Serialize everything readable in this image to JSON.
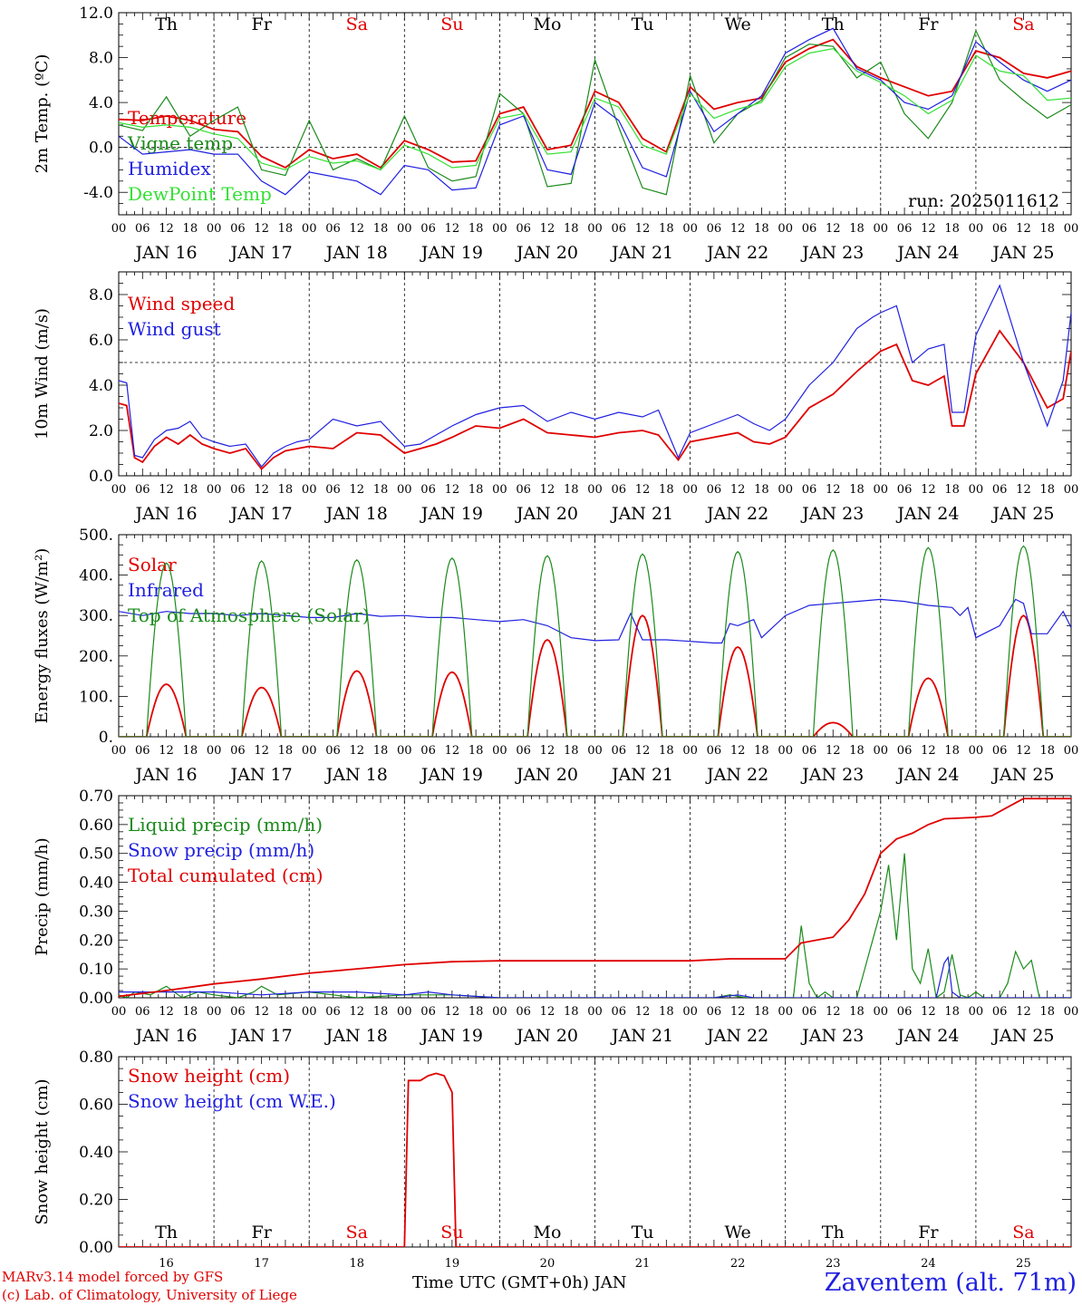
{
  "run_label": "run: 2025011612",
  "footer": {
    "model": "MARv3.14 model forced by GFS",
    "lab": "(c) Lab. of Climatology, University of Liege",
    "axis_title": "Time UTC (GMT+0h) JAN",
    "station": "Zaventem (alt. 71m)"
  },
  "colors": {
    "red": "#e00000",
    "blue": "#2020e0",
    "green": "#1a8a1a",
    "light_green": "#33e033",
    "weekend": "#e00000",
    "text": "#000000"
  },
  "days": [
    {
      "weekday": "Th",
      "date": "JAN 16",
      "day": "16",
      "weekend": false
    },
    {
      "weekday": "Fr",
      "date": "JAN 17",
      "day": "17",
      "weekend": false
    },
    {
      "weekday": "Sa",
      "date": "JAN 18",
      "day": "18",
      "weekend": true
    },
    {
      "weekday": "Su",
      "date": "JAN 19",
      "day": "19",
      "weekend": true
    },
    {
      "weekday": "Mo",
      "date": "JAN 20",
      "day": "20",
      "weekend": false
    },
    {
      "weekday": "Tu",
      "date": "JAN 21",
      "day": "21",
      "weekend": false
    },
    {
      "weekday": "We",
      "date": "JAN 22",
      "day": "22",
      "weekend": false
    },
    {
      "weekday": "Th",
      "date": "JAN 23",
      "day": "23",
      "weekend": false
    },
    {
      "weekday": "Fr",
      "date": "JAN 24",
      "day": "24",
      "weekend": false
    },
    {
      "weekday": "Sa",
      "date": "JAN 25",
      "day": "25",
      "weekend": true
    }
  ],
  "hour_ticks": [
    "00",
    "06",
    "12",
    "18"
  ],
  "chart_data": [
    {
      "type": "line",
      "ylabel": "2m Temp. (ºC)",
      "ylim": [
        -6,
        12
      ],
      "yticks": [
        "-4.0",
        "0.0",
        "4.0",
        "8.0",
        "12.0"
      ],
      "ytick_values": [
        -4,
        0,
        4,
        8,
        12
      ],
      "ref_line": 0,
      "x_hours": [
        0,
        6,
        12,
        18,
        24,
        30,
        36,
        42,
        48,
        54,
        60,
        66,
        72,
        78,
        84,
        90,
        96,
        102,
        108,
        114,
        120,
        126,
        132,
        138,
        144,
        150,
        156,
        162,
        168,
        174,
        180,
        186,
        192,
        198,
        204,
        210,
        216,
        222,
        228,
        234,
        240
      ],
      "series": [
        {
          "name": "Temperature",
          "color": "red",
          "values": [
            2.5,
            2.4,
            2.8,
            2.4,
            1.6,
            1.4,
            -0.8,
            -1.8,
            -0.2,
            -1.0,
            -0.6,
            -1.8,
            0.6,
            -0.2,
            -1.3,
            -1.2,
            3.0,
            3.6,
            -0.2,
            0.2,
            5.0,
            4.0,
            0.8,
            -0.4,
            5.4,
            3.4,
            4.0,
            4.4,
            7.6,
            8.8,
            9.6,
            7.2,
            6.2,
            5.4,
            4.6,
            5.0,
            8.6,
            8.0,
            6.6,
            6.2,
            6.8
          ]
        },
        {
          "name": "Vigne temp",
          "color": "green",
          "values": [
            2.0,
            1.5,
            4.5,
            1.0,
            2.4,
            3.6,
            -2.0,
            -2.5,
            2.4,
            -2.0,
            -1.0,
            -2.0,
            2.8,
            -1.8,
            -3.0,
            -2.6,
            4.8,
            3.0,
            -3.5,
            -3.2,
            7.8,
            1.8,
            -3.6,
            -4.2,
            6.4,
            0.4,
            3.0,
            4.2,
            8.0,
            9.2,
            9.0,
            6.2,
            7.6,
            3.0,
            0.8,
            4.0,
            10.4,
            6.0,
            4.2,
            2.6,
            3.8
          ]
        },
        {
          "name": "Humidex",
          "color": "blue",
          "values": [
            1.0,
            -0.6,
            -0.4,
            -0.2,
            -0.6,
            -0.6,
            -3.0,
            -4.2,
            -2.2,
            -2.6,
            -3.0,
            -4.2,
            -1.6,
            -2.0,
            -3.8,
            -3.6,
            2.0,
            2.8,
            -2.0,
            -2.4,
            4.0,
            2.4,
            -1.8,
            -2.6,
            5.0,
            1.4,
            3.0,
            4.6,
            8.4,
            9.6,
            10.6,
            7.0,
            6.0,
            4.0,
            3.4,
            4.6,
            9.4,
            7.6,
            6.0,
            5.0,
            6.0
          ]
        },
        {
          "name": "DewPoint Temp",
          "color": "light_green",
          "values": [
            2.2,
            1.8,
            2.0,
            1.8,
            1.2,
            0.8,
            -1.4,
            -2.0,
            -0.8,
            -1.4,
            -1.2,
            -2.0,
            0.2,
            -0.6,
            -1.8,
            -1.6,
            2.6,
            3.0,
            -0.6,
            -0.4,
            4.4,
            3.6,
            0.2,
            -0.6,
            4.8,
            2.6,
            3.4,
            4.0,
            7.2,
            8.4,
            8.8,
            6.8,
            5.8,
            4.6,
            3.0,
            4.2,
            8.2,
            6.8,
            6.4,
            4.2,
            4.4
          ]
        }
      ]
    },
    {
      "type": "line",
      "ylabel": "10m Wind (m/s)",
      "ylim": [
        0,
        9
      ],
      "yticks": [
        "0.0",
        "2.0",
        "4.0",
        "6.0",
        "8.0"
      ],
      "ytick_values": [
        0,
        2,
        4,
        6,
        8
      ],
      "ref_line": 5,
      "x_hours": [
        0,
        2,
        4,
        6,
        9,
        12,
        15,
        18,
        21,
        24,
        28,
        32,
        36,
        39,
        42,
        45,
        48,
        54,
        60,
        66,
        72,
        76,
        80,
        84,
        90,
        96,
        102,
        108,
        114,
        120,
        126,
        132,
        136,
        141,
        144,
        150,
        156,
        160,
        164,
        168,
        174,
        180,
        186,
        190,
        192,
        196,
        200,
        204,
        208,
        210,
        213,
        216,
        222,
        228,
        234,
        238,
        240
      ],
      "series": [
        {
          "name": "Wind speed",
          "color": "red",
          "values": [
            3.2,
            3.1,
            0.8,
            0.6,
            1.3,
            1.7,
            1.4,
            1.8,
            1.4,
            1.2,
            1.0,
            1.2,
            0.3,
            0.8,
            1.1,
            1.2,
            1.3,
            1.2,
            1.9,
            1.8,
            1.0,
            1.2,
            1.4,
            1.7,
            2.2,
            2.1,
            2.5,
            1.9,
            1.8,
            1.7,
            1.9,
            2.0,
            1.8,
            0.7,
            1.5,
            1.7,
            1.9,
            1.5,
            1.4,
            1.7,
            3.0,
            3.6,
            4.6,
            5.2,
            5.5,
            5.8,
            4.2,
            4.0,
            4.4,
            2.2,
            2.2,
            4.5,
            6.4,
            5.0,
            3.0,
            3.4,
            5.5
          ]
        },
        {
          "name": "Wind gust",
          "color": "blue",
          "values": [
            4.2,
            4.1,
            0.9,
            0.8,
            1.6,
            2.0,
            2.1,
            2.4,
            1.7,
            1.5,
            1.3,
            1.4,
            0.4,
            1.0,
            1.3,
            1.5,
            1.6,
            2.5,
            2.2,
            2.4,
            1.3,
            1.4,
            1.8,
            2.2,
            2.7,
            3.0,
            3.1,
            2.4,
            2.8,
            2.5,
            2.8,
            2.6,
            2.9,
            0.8,
            1.9,
            2.3,
            2.7,
            2.3,
            2.0,
            2.5,
            4.0,
            5.0,
            6.5,
            7.0,
            7.2,
            7.5,
            5.0,
            5.6,
            5.8,
            2.8,
            2.8,
            6.2,
            8.4,
            5.0,
            2.2,
            4.2,
            7.2
          ]
        }
      ]
    },
    {
      "type": "line",
      "ylabel": "Energy fluxes (W/m²)",
      "ylim": [
        0,
        500
      ],
      "yticks": [
        "0.",
        "100.",
        "200.",
        "300.",
        "400.",
        "500."
      ],
      "ytick_values": [
        0,
        100,
        200,
        300,
        400,
        500
      ],
      "ref_line": null,
      "series": [
        {
          "name": "Solar",
          "color": "red",
          "peaks": [
            [
              12,
              130
            ],
            [
              36,
              122
            ],
            [
              60,
              163
            ],
            [
              84,
              160
            ],
            [
              108,
              240
            ],
            [
              132,
              300
            ],
            [
              156,
              222
            ],
            [
              180,
              35
            ],
            [
              204,
              145
            ],
            [
              228,
              300
            ]
          ]
        },
        {
          "name": "Infrared",
          "color": "blue",
          "x_hours": [
            0,
            6,
            12,
            18,
            24,
            30,
            36,
            42,
            48,
            54,
            60,
            66,
            72,
            78,
            84,
            90,
            96,
            102,
            108,
            111,
            114,
            120,
            126,
            129,
            132,
            138,
            144,
            150,
            152,
            154,
            156,
            160,
            162,
            168,
            174,
            180,
            186,
            192,
            198,
            204,
            210,
            212,
            214,
            216,
            222,
            226,
            228,
            230,
            234,
            238,
            240
          ],
          "values": [
            310,
            300,
            310,
            305,
            305,
            300,
            305,
            300,
            295,
            295,
            305,
            298,
            300,
            295,
            295,
            290,
            285,
            290,
            275,
            260,
            245,
            238,
            240,
            305,
            240,
            240,
            236,
            232,
            232,
            280,
            275,
            290,
            245,
            300,
            325,
            330,
            335,
            340,
            335,
            325,
            320,
            300,
            320,
            245,
            275,
            340,
            330,
            255,
            255,
            310,
            270
          ]
        },
        {
          "name": "Top of Atmosphere (Solar)",
          "color": "green",
          "peaks": [
            [
              12,
              430
            ],
            [
              36,
              435
            ],
            [
              60,
              438
            ],
            [
              84,
              442
            ],
            [
              108,
              448
            ],
            [
              132,
              452
            ],
            [
              156,
              458
            ],
            [
              180,
              462
            ],
            [
              204,
              468
            ],
            [
              228,
              472
            ]
          ]
        }
      ]
    },
    {
      "type": "line",
      "ylabel": "Precip (mm/h)",
      "ylim": [
        0,
        0.7
      ],
      "yticks": [
        "0.00",
        "0.10",
        "0.20",
        "0.30",
        "0.40",
        "0.50",
        "0.60",
        "0.70"
      ],
      "ytick_values": [
        0,
        0.1,
        0.2,
        0.3,
        0.4,
        0.5,
        0.6,
        0.7
      ],
      "ref_line": null,
      "series": [
        {
          "name": "Liquid precip (mm/h)",
          "color": "green",
          "x_hours": [
            0,
            2,
            4,
            8,
            12,
            16,
            20,
            24,
            30,
            34,
            36,
            40,
            48,
            60,
            72,
            84,
            96,
            120,
            150,
            154,
            158,
            170,
            172,
            174,
            176,
            178,
            180,
            182,
            186,
            188,
            190,
            192,
            194,
            196,
            198,
            200,
            202,
            204,
            206,
            208,
            210,
            212,
            214,
            216,
            218,
            220,
            222,
            224,
            226,
            228,
            230,
            232,
            236,
            240
          ],
          "values": [
            0.01,
            0.0,
            0.02,
            0.01,
            0.04,
            0.0,
            0.02,
            0.01,
            0.0,
            0.02,
            0.04,
            0.01,
            0.02,
            0.0,
            0.01,
            0.01,
            0.0,
            0.0,
            0.0,
            0.01,
            0.0,
            0.0,
            0.25,
            0.05,
            0.0,
            0.02,
            0.0,
            0.0,
            0.0,
            0.1,
            0.2,
            0.3,
            0.46,
            0.2,
            0.5,
            0.1,
            0.05,
            0.17,
            0.0,
            0.02,
            0.15,
            0.01,
            0.0,
            0.02,
            0.0,
            0.0,
            0.0,
            0.05,
            0.16,
            0.1,
            0.13,
            0.0,
            0.0,
            0.0
          ]
        },
        {
          "name": "Snow precip (mm/h)",
          "color": "blue",
          "x_hours": [
            0,
            12,
            24,
            36,
            48,
            60,
            72,
            78,
            84,
            96,
            120,
            150,
            156,
            160,
            200,
            206,
            208,
            209,
            210,
            212,
            240
          ],
          "values": [
            0.02,
            0.02,
            0.02,
            0.01,
            0.02,
            0.02,
            0.01,
            0.02,
            0.01,
            0.0,
            0.0,
            0.0,
            0.01,
            0.0,
            0.0,
            0.0,
            0.12,
            0.14,
            0.02,
            0.0,
            0.0
          ]
        },
        {
          "name": "Total cumulated (cm)",
          "color": "red",
          "x_hours": [
            0,
            12,
            24,
            36,
            48,
            60,
            72,
            84,
            96,
            120,
            144,
            154,
            168,
            172,
            176,
            180,
            184,
            188,
            192,
            196,
            200,
            204,
            208,
            216,
            220,
            224,
            228,
            240
          ],
          "values": [
            0.005,
            0.025,
            0.048,
            0.065,
            0.085,
            0.1,
            0.115,
            0.125,
            0.128,
            0.128,
            0.128,
            0.135,
            0.135,
            0.19,
            0.2,
            0.21,
            0.27,
            0.36,
            0.5,
            0.55,
            0.57,
            0.6,
            0.62,
            0.625,
            0.63,
            0.66,
            0.69,
            0.69
          ]
        }
      ]
    },
    {
      "type": "line",
      "ylabel": "Snow height (cm)",
      "ylim": [
        0,
        0.8
      ],
      "yticks": [
        "0.00",
        "0.20",
        "0.40",
        "0.60",
        "0.80"
      ],
      "ytick_values": [
        0,
        0.2,
        0.4,
        0.6,
        0.8
      ],
      "ref_line": null,
      "series": [
        {
          "name": "Snow height (cm)",
          "color": "red",
          "x_hours": [
            0,
            72,
            73,
            76,
            78,
            80,
            82,
            84,
            85,
            240
          ],
          "values": [
            0,
            0,
            0.7,
            0.7,
            0.72,
            0.73,
            0.72,
            0.65,
            0,
            0
          ]
        },
        {
          "name": "Snow height (cm W.E.)",
          "color": "blue",
          "x_hours": [],
          "values": []
        }
      ]
    }
  ]
}
